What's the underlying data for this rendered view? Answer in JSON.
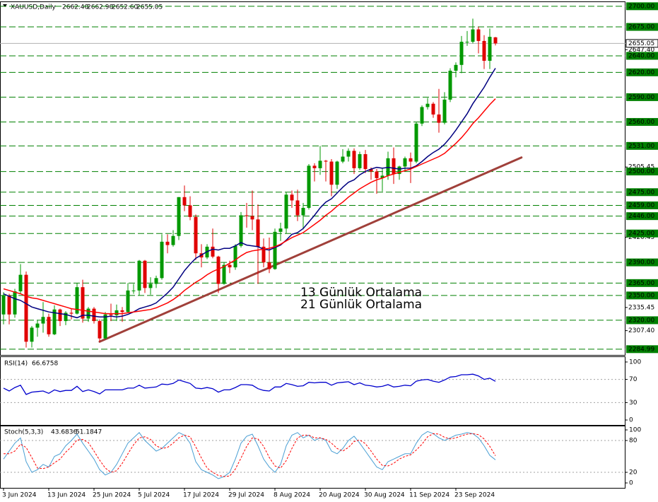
{
  "chart_data": [
    {
      "type": "candlestick",
      "title": "XAUUSD,Daily",
      "header_values": [
        {
          "value": 2662.4,
          "label": "2662.40"
        },
        {
          "value": 2662.9,
          "label": "2662.90"
        },
        {
          "value": 2652.6,
          "label": "2652.60"
        },
        {
          "value": 2655.05,
          "label": "2655.05"
        }
      ],
      "categories": [
        "3 Jun 2024",
        null,
        null,
        null,
        null,
        null,
        null,
        null,
        "13 Jun 2024",
        null,
        null,
        null,
        null,
        null,
        null,
        null,
        "25 Jun 2024",
        null,
        null,
        null,
        null,
        null,
        null,
        null,
        "5 Jul 2024",
        null,
        null,
        null,
        null,
        null,
        null,
        null,
        "17 Jul 2024",
        null,
        null,
        null,
        null,
        null,
        null,
        null,
        "29 Jul 2024",
        null,
        null,
        null,
        null,
        null,
        null,
        null,
        "8 Aug 2024",
        null,
        null,
        null,
        null,
        null,
        null,
        null,
        "20 Aug 2024",
        null,
        null,
        null,
        null,
        null,
        null,
        null,
        "30 Aug 2024",
        null,
        null,
        null,
        null,
        null,
        null,
        null,
        "11 Sep 2024",
        null,
        null,
        null,
        null,
        null,
        null,
        null,
        "23 Sep 2024",
        null,
        null,
        null,
        null,
        null,
        null,
        null
      ],
      "open": [
        2327,
        2350,
        2327,
        2355,
        2375,
        2294,
        2311,
        2316,
        2324,
        2303,
        2333,
        2319,
        2329,
        2328,
        2360,
        2322,
        2334,
        2319,
        2298,
        2327,
        2326,
        2332,
        2330,
        2356,
        2356,
        2392,
        2359,
        2364,
        2371,
        2415,
        2411,
        2422,
        2469,
        2459,
        2445,
        2401,
        2396,
        2409,
        2397,
        2364,
        2387,
        2384,
        2410,
        2447,
        2446,
        2442,
        2409,
        2390,
        2382,
        2427,
        2431,
        2472,
        2465,
        2447,
        2456,
        2507,
        2504,
        2513,
        2512,
        2484,
        2512,
        2518,
        2525,
        2504,
        2521,
        2503,
        2500,
        2492,
        2495,
        2516,
        2497,
        2506,
        2516,
        2512,
        2558,
        2578,
        2582,
        2569,
        2559,
        2587,
        2622,
        2629,
        2657,
        2657,
        2672,
        2658,
        2634,
        2662.4
      ],
      "high": [
        2354,
        2352,
        2358,
        2388,
        2379,
        2313,
        2320,
        2342,
        2328,
        2338,
        2334,
        2331,
        2334,
        2365,
        2369,
        2336,
        2336,
        2321,
        2330,
        2340,
        2339,
        2336,
        2365,
        2364,
        2393,
        2393,
        2372,
        2374,
        2424,
        2424,
        2429,
        2469,
        2483,
        2470,
        2448,
        2412,
        2412,
        2431,
        2398,
        2390,
        2392,
        2412,
        2451,
        2462,
        2477,
        2460,
        2419,
        2420,
        2431,
        2438,
        2475,
        2477,
        2478,
        2462,
        2509,
        2510,
        2531,
        2514,
        2515,
        2513,
        2527,
        2528,
        2528,
        2524,
        2526,
        2505,
        2503,
        2504,
        2524,
        2529,
        2507,
        2518,
        2523,
        2560,
        2580,
        2589,
        2584,
        2600,
        2596,
        2625,
        2632,
        2664,
        2670,
        2685,
        2675,
        2665,
        2673,
        2662.9
      ],
      "low": [
        2315,
        2315,
        2323,
        2352,
        2287,
        2287,
        2300,
        2305,
        2300,
        2302,
        2313,
        2314,
        2321,
        2327,
        2317,
        2318,
        2316,
        2294,
        2297,
        2319,
        2319,
        2318,
        2329,
        2352,
        2350,
        2353,
        2351,
        2359,
        2369,
        2401,
        2409,
        2417,
        2452,
        2441,
        2393,
        2384,
        2394,
        2395,
        2353,
        2363,
        2377,
        2381,
        2408,
        2432,
        2429,
        2364,
        2384,
        2377,
        2381,
        2416,
        2425,
        2456,
        2440,
        2430,
        2454,
        2488,
        2496,
        2488,
        2470,
        2479,
        2510,
        2512,
        2497,
        2502,
        2498,
        2490,
        2473,
        2476,
        2490,
        2485,
        2490,
        2500,
        2486,
        2510,
        2555,
        2575,
        2565,
        2547,
        2557,
        2584,
        2614,
        2619,
        2652,
        2655,
        2643,
        2624,
        2624,
        2652.6
      ],
      "close": [
        2350,
        2327,
        2355,
        2375,
        2294,
        2311,
        2316,
        2324,
        2303,
        2333,
        2319,
        2329,
        2328,
        2360,
        2322,
        2334,
        2319,
        2298,
        2327,
        2326,
        2332,
        2330,
        2356,
        2356,
        2392,
        2359,
        2364,
        2371,
        2415,
        2411,
        2422,
        2469,
        2459,
        2445,
        2401,
        2396,
        2409,
        2397,
        2364,
        2387,
        2384,
        2410,
        2447,
        2446,
        2442,
        2409,
        2390,
        2382,
        2427,
        2431,
        2472,
        2465,
        2447,
        2456,
        2507,
        2504,
        2513,
        2512,
        2484,
        2512,
        2518,
        2525,
        2504,
        2521,
        2503,
        2500,
        2492,
        2495,
        2516,
        2497,
        2506,
        2516,
        2512,
        2558,
        2578,
        2582,
        2569,
        2559,
        2587,
        2622,
        2629,
        2657,
        2657,
        2672,
        2658,
        2634,
        2663,
        2655.05
      ],
      "up_color": "#009900",
      "down_color": "#e00000",
      "series": [
        {
          "name": "13 Günlük Ortalama",
          "color": "#000080",
          "values": [
            2352,
            2349,
            2346,
            2344,
            2340,
            2336,
            2334,
            2332,
            2330,
            2329,
            2328,
            2327,
            2325,
            2323,
            2326,
            2326,
            2325,
            2324,
            2324,
            2325,
            2324,
            2325,
            2327,
            2330,
            2334,
            2336,
            2338,
            2341,
            2347,
            2353,
            2360,
            2370,
            2380,
            2388,
            2395,
            2399,
            2403,
            2406,
            2405,
            2407,
            2407,
            2410,
            2414,
            2411,
            2410,
            2409,
            2406,
            2405,
            2408,
            2411,
            2417,
            2424,
            2426,
            2431,
            2439,
            2447,
            2456,
            2463,
            2467,
            2474,
            2481,
            2487,
            2490,
            2496,
            2500,
            2503,
            2505,
            2504,
            2505,
            2504,
            2503,
            2504,
            2504,
            2507,
            2512,
            2518,
            2523,
            2527,
            2533,
            2541,
            2550,
            2560,
            2570,
            2582,
            2592,
            2602,
            2614,
            2625
          ]
        },
        {
          "name": "21 Günlük Ortalama",
          "color": "#ff0000",
          "values": [
            2358,
            2356,
            2354,
            2352,
            2349,
            2347,
            2346,
            2344,
            2342,
            2340,
            2338,
            2336,
            2334,
            2333,
            2332,
            2331,
            2330,
            2329,
            2328,
            2328,
            2328,
            2328,
            2329,
            2330,
            2331,
            2332,
            2333,
            2335,
            2338,
            2341,
            2345,
            2350,
            2356,
            2361,
            2366,
            2370,
            2375,
            2379,
            2382,
            2385,
            2389,
            2393,
            2398,
            2402,
            2404,
            2405,
            2406,
            2407,
            2409,
            2412,
            2416,
            2420,
            2423,
            2426,
            2431,
            2436,
            2441,
            2447,
            2452,
            2458,
            2463,
            2469,
            2474,
            2479,
            2483,
            2487,
            2490,
            2492,
            2495,
            2497,
            2499,
            2501,
            2503,
            2506,
            2509,
            2512,
            2515,
            2518,
            2522,
            2528,
            2534,
            2541,
            2549,
            2558,
            2565,
            2573,
            2581,
            2588
          ]
        }
      ],
      "trendline": {
        "color": "#a0403a",
        "values": [
          2294,
          2517
        ]
      },
      "ylim": [
        2278,
        2705
      ],
      "yticks": [
        {
          "value": 2307.4,
          "label": "2307.40"
        },
        {
          "value": 2335.45,
          "label": "2335.45"
        },
        {
          "value": 2420.45,
          "label": "2420.45"
        },
        {
          "value": 2505.45,
          "label": "2505.45"
        },
        {
          "value": 2647.4,
          "label": "2647.40"
        }
      ],
      "levels": [
        {
          "value": 2700,
          "label": "2700.00"
        },
        {
          "value": 2675,
          "label": "2675.00"
        },
        {
          "value": 2640,
          "label": "2640.00"
        },
        {
          "value": 2620,
          "label": "2620.00"
        },
        {
          "value": 2590,
          "label": "2590.00"
        },
        {
          "value": 2560,
          "label": "2560.00"
        },
        {
          "value": 2531,
          "label": "2531.00"
        },
        {
          "value": 2500,
          "label": "2500.00"
        },
        {
          "value": 2475,
          "label": "2475.00"
        },
        {
          "value": 2459,
          "label": "2459.00"
        },
        {
          "value": 2446,
          "label": "2446.00"
        },
        {
          "value": 2425,
          "label": "2425.00"
        },
        {
          "value": 2390,
          "label": "2390.00"
        },
        {
          "value": 2365,
          "label": "2365.00"
        },
        {
          "value": 2350,
          "label": "2350.00"
        },
        {
          "value": 2320,
          "label": "2320.00"
        },
        {
          "value": 2284.99,
          "label": "2284.99"
        }
      ],
      "level_color": "#008000",
      "last_price": {
        "value": 2655.05,
        "label": "2655.05"
      }
    },
    {
      "type": "line",
      "title": "RSI(14)",
      "color": "#0000cd",
      "values": [
        55,
        50,
        56,
        60,
        44,
        48,
        49,
        50,
        46,
        52,
        49,
        51,
        51,
        58,
        49,
        52,
        49,
        45,
        52,
        52,
        52,
        52,
        55,
        55,
        60,
        55,
        56,
        57,
        62,
        61,
        63,
        69,
        66,
        63,
        55,
        54,
        56,
        54,
        48,
        52,
        52,
        56,
        61,
        61,
        60,
        54,
        51,
        50,
        57,
        57,
        63,
        61,
        58,
        59,
        65,
        64,
        65,
        65,
        60,
        64,
        65,
        66,
        61,
        64,
        60,
        59,
        57,
        58,
        61,
        57,
        58,
        60,
        59,
        67,
        69,
        70,
        67,
        65,
        69,
        74,
        75,
        78,
        78,
        79,
        76,
        70,
        72,
        66.6758
      ],
      "ylim": [
        -8.5,
        108.5
      ],
      "yticks": [
        0,
        30,
        70,
        100
      ]
    },
    {
      "type": "line",
      "title": "Stoch(5,3,3)",
      "series": [
        {
          "color": "#4a9fd4",
          "values": [
            45,
            60,
            75,
            85,
            40,
            20,
            25,
            35,
            30,
            50,
            55,
            70,
            80,
            92,
            75,
            60,
            45,
            25,
            15,
            20,
            35,
            55,
            75,
            85,
            95,
            80,
            70,
            60,
            65,
            75,
            85,
            95,
            90,
            75,
            40,
            25,
            20,
            15,
            8,
            12,
            20,
            45,
            75,
            88,
            92,
            70,
            45,
            30,
            20,
            35,
            70,
            90,
            95,
            85,
            90,
            80,
            85,
            80,
            60,
            55,
            65,
            80,
            88,
            75,
            60,
            45,
            30,
            25,
            40,
            45,
            50,
            55,
            55,
            75,
            90,
            97,
            93,
            85,
            80,
            85,
            90,
            92,
            95,
            93,
            85,
            70,
            52,
            43.6836
          ]
        },
        {
          "color": "#ff0000",
          "dashed": true,
          "values": [
            55,
            55,
            60,
            73,
            67,
            48,
            28,
            27,
            30,
            38,
            45,
            58,
            68,
            81,
            82,
            76,
            60,
            43,
            28,
            20,
            23,
            37,
            55,
            72,
            85,
            87,
            82,
            70,
            65,
            67,
            75,
            85,
            90,
            87,
            68,
            47,
            28,
            20,
            14,
            12,
            13,
            26,
            47,
            69,
            85,
            83,
            69,
            48,
            32,
            28,
            42,
            65,
            85,
            90,
            90,
            85,
            85,
            82,
            75,
            65,
            60,
            67,
            78,
            81,
            74,
            60,
            45,
            33,
            32,
            37,
            45,
            50,
            53,
            62,
            73,
            87,
            93,
            92,
            86,
            83,
            85,
            89,
            92,
            93,
            91,
            83,
            69,
            51.1847
          ]
        }
      ],
      "ylim": [
        -9.3,
        106.7
      ],
      "yticks": [
        0,
        20,
        80,
        100
      ]
    }
  ]
}
